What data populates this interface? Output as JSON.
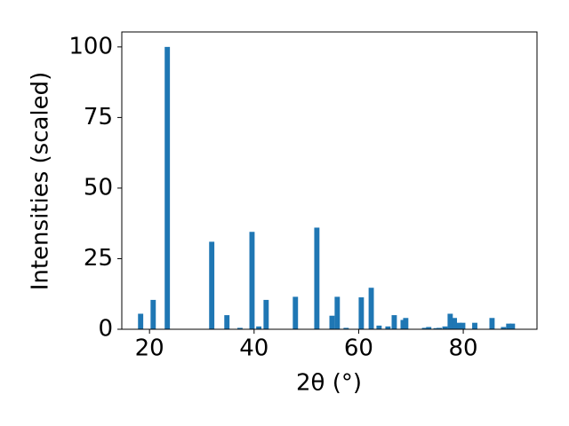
{
  "chart_data": {
    "type": "bar",
    "x_label": "2θ (°)",
    "y_label": "Intensities (scaled)",
    "x": [
      18.3,
      20.7,
      23.4,
      31.9,
      34.8,
      37.3,
      39.6,
      40.9,
      42.3,
      47.9,
      52.0,
      54.9,
      55.9,
      57.6,
      60.5,
      62.4,
      63.9,
      65.6,
      66.8,
      68.5,
      69.0,
      72.6,
      73.4,
      74.8,
      75.4,
      76.5,
      77.5,
      78.3,
      79.2,
      79.9,
      82.2,
      85.5,
      87.7,
      88.7,
      89.4
    ],
    "values": [
      5.5,
      10.4,
      100,
      31,
      5,
      0.5,
      34.5,
      1,
      10.4,
      11.5,
      36,
      4.8,
      11.5,
      0.5,
      11.3,
      14.7,
      1.3,
      1,
      5,
      3.3,
      4,
      0.5,
      0.8,
      0.4,
      0.5,
      1,
      5.5,
      4,
      2.3,
      2.3,
      2.3,
      4,
      0.8,
      2,
      2
    ],
    "color": "#1f77b4",
    "xlim": [
      14.7,
      94.1
    ],
    "xticks": [
      20,
      40,
      60,
      80
    ],
    "ylim": [
      0,
      105.3
    ],
    "yticks": [
      0,
      25,
      50,
      75,
      100
    ]
  }
}
